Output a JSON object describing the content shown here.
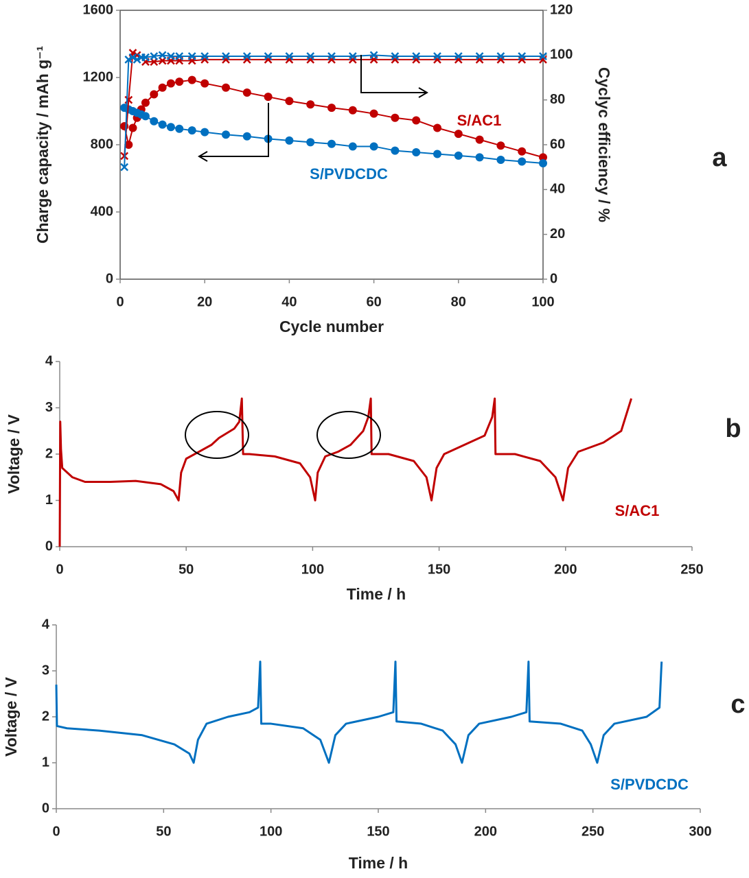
{
  "chart_data": [
    {
      "type": "line",
      "panel_label": "a",
      "xlabel": "Cycle number",
      "ylabel": "Charge capacity / mAh g⁻¹",
      "y2label": "Cyclyc efficiency / %",
      "x": [
        1,
        2,
        3,
        4,
        5,
        6,
        8,
        10,
        12,
        14,
        17,
        20,
        25,
        30,
        35,
        40,
        45,
        50,
        55,
        60,
        65,
        70,
        75,
        80,
        85,
        90,
        95,
        100
      ],
      "series": [
        {
          "name": "S/AC1",
          "color": "#c00000",
          "marker": "circle",
          "values": [
            910,
            800,
            900,
            960,
            1010,
            1050,
            1100,
            1140,
            1165,
            1175,
            1185,
            1165,
            1140,
            1110,
            1085,
            1060,
            1040,
            1020,
            1005,
            985,
            960,
            945,
            900,
            865,
            830,
            795,
            760,
            725
          ]
        },
        {
          "name": "S/PVDCDC",
          "color": "#0070c0",
          "marker": "circle",
          "values": [
            1020,
            1010,
            1000,
            990,
            980,
            970,
            940,
            920,
            905,
            895,
            885,
            875,
            860,
            850,
            835,
            825,
            815,
            805,
            790,
            790,
            765,
            755,
            745,
            735,
            725,
            710,
            700,
            690
          ]
        },
        {
          "color": "#c00000",
          "marker": "cross",
          "axis": "y2",
          "values": [
            55,
            80,
            101,
            100,
            99,
            97,
            97,
            97.5,
            97.5,
            97.5,
            97.5,
            98,
            98,
            98,
            98,
            98,
            98,
            98,
            98,
            98,
            98,
            98,
            98,
            98,
            98,
            98,
            98,
            98
          ]
        },
        {
          "color": "#0070c0",
          "marker": "cross",
          "axis": "y2",
          "values": [
            50,
            98,
            99,
            98,
            99,
            99,
            99.5,
            100,
            99.5,
            99.5,
            99.5,
            99.5,
            99.5,
            99.5,
            99.5,
            99.5,
            99.5,
            99.5,
            99.5,
            100,
            99.5,
            99.5,
            99.5,
            99.5,
            99.5,
            99.5,
            99.5,
            99.5
          ]
        }
      ],
      "xlim": [
        0,
        100
      ],
      "xticks": [
        0,
        20,
        40,
        60,
        80,
        100
      ],
      "ylim": [
        0,
        1600
      ],
      "yticks": [
        0,
        400,
        800,
        1200,
        1600
      ],
      "y2lim": [
        0,
        120
      ],
      "y2ticks": [
        0,
        20,
        40,
        60,
        80,
        100,
        120
      ],
      "frame": true
    },
    {
      "type": "line",
      "panel_label": "b",
      "xlabel": "Time / h",
      "ylabel": "Voltage / V",
      "x": [
        0,
        0.2,
        0.5,
        1,
        5,
        10,
        20,
        30,
        40,
        45,
        47,
        48,
        50,
        55,
        60,
        63,
        66,
        69,
        71,
        72,
        72.5,
        75,
        85,
        95,
        99,
        101,
        102,
        105,
        110,
        115,
        120,
        122,
        123,
        123.3,
        130,
        140,
        145,
        147,
        149,
        152,
        160,
        168,
        171,
        172,
        172.3,
        180,
        190,
        196,
        199,
        201,
        205,
        215,
        222,
        226
      ],
      "series": [
        {
          "name": "S/AC1",
          "color": "#c00000",
          "values": [
            0,
            2.7,
            2.1,
            1.7,
            1.5,
            1.4,
            1.4,
            1.42,
            1.35,
            1.2,
            1.0,
            1.6,
            1.9,
            2.05,
            2.2,
            2.35,
            2.45,
            2.55,
            2.7,
            3.2,
            2.0,
            2.0,
            1.95,
            1.8,
            1.5,
            1.0,
            1.6,
            1.95,
            2.05,
            2.2,
            2.5,
            2.8,
            3.2,
            2.0,
            2.0,
            1.85,
            1.5,
            1.0,
            1.7,
            2.0,
            2.2,
            2.4,
            2.8,
            3.2,
            2.0,
            2.0,
            1.85,
            1.5,
            1.0,
            1.7,
            2.05,
            2.25,
            2.5,
            3.2
          ]
        }
      ],
      "xlim": [
        0,
        250
      ],
      "xticks": [
        0,
        50,
        100,
        150,
        200,
        250
      ],
      "ylim": [
        0,
        4
      ],
      "yticks": [
        0,
        1,
        2,
        3,
        4
      ],
      "frame": false
    },
    {
      "type": "line",
      "panel_label": "c",
      "xlabel": "Time / h",
      "ylabel": "Voltage / V",
      "x": [
        0,
        0.3,
        5,
        20,
        40,
        55,
        62,
        64,
        66,
        70,
        80,
        90,
        94,
        95,
        95.5,
        100,
        115,
        123,
        127,
        130,
        135,
        150,
        157,
        158,
        158.5,
        170,
        180,
        186,
        189,
        192,
        197,
        212,
        219,
        220,
        220.5,
        235,
        245,
        249,
        252,
        255,
        260,
        275,
        281,
        282
      ],
      "series": [
        {
          "name": "S/PVDCDC",
          "color": "#0070c0",
          "values": [
            2.7,
            1.8,
            1.75,
            1.7,
            1.6,
            1.4,
            1.2,
            1.0,
            1.5,
            1.85,
            2.0,
            2.1,
            2.2,
            3.2,
            1.85,
            1.85,
            1.75,
            1.5,
            1.0,
            1.6,
            1.85,
            2.0,
            2.1,
            3.2,
            1.9,
            1.85,
            1.7,
            1.4,
            1.0,
            1.6,
            1.85,
            2.0,
            2.1,
            3.2,
            1.9,
            1.85,
            1.7,
            1.4,
            1.0,
            1.6,
            1.85,
            2.0,
            2.2,
            3.2
          ]
        }
      ],
      "xlim": [
        0,
        300
      ],
      "xticks": [
        0,
        50,
        100,
        150,
        200,
        250,
        300
      ],
      "ylim": [
        0,
        4
      ],
      "yticks": [
        0,
        1,
        2,
        3,
        4
      ],
      "frame": false
    }
  ]
}
